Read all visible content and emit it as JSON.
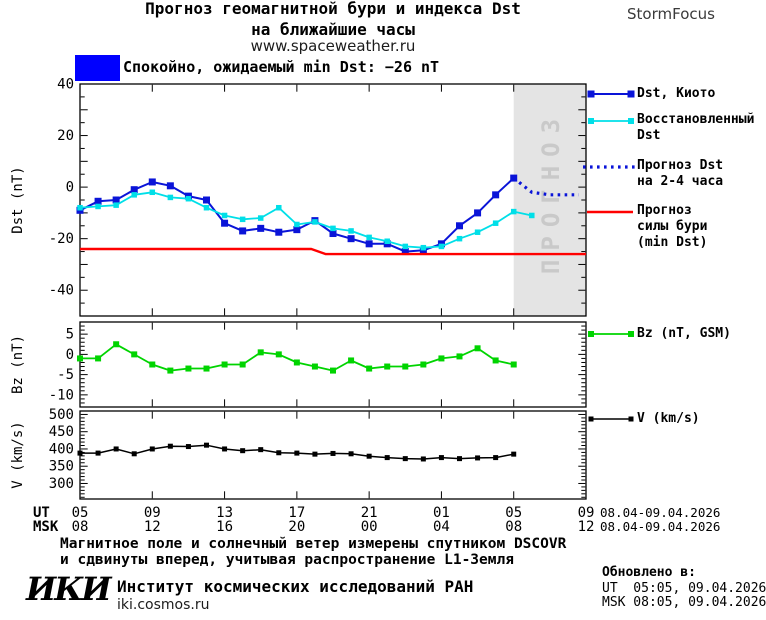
{
  "header": {
    "title_line1": "Прогноз геомагнитной бури и индекса Dst",
    "title_line2": "на ближайшие часы",
    "url": "www.spaceweather.ru",
    "brand": "StormFocus"
  },
  "status_banner": {
    "state_text": "Спокойно, ожидаемый min Dst: −26 nT",
    "swatch_color": "#0000ff"
  },
  "legend": {
    "dst_kyoto": "Dst, Киото",
    "restored_l1": "Восстановленный",
    "restored_l2": "Dst",
    "forecast_l1": "Прогноз Dst",
    "forecast_l2": "на 2-4 часа",
    "storm_l1": "Прогноз",
    "storm_l2": "силы бури",
    "storm_l3": "(min Dst)",
    "bz": "Bz (nT, GSM)",
    "v": "V (km/s)"
  },
  "footer": {
    "note_line1": "Магнитное поле и солнечный ветер измерены спутником DSCOVR",
    "note_line2": "и сдвинуты вперед, учитывая распространение L1-Земля",
    "logo": "ИКИ",
    "institute": "Институт космических исследований РАН",
    "institute_url": "iki.cosmos.ru",
    "updated_label": "Обновлено в:",
    "updated_ut": "UT  05:05, 09.04.2026",
    "updated_msk": "MSK 08:05, 09.04.2026"
  },
  "chart_data": {
    "x_axis": {
      "ut_row_label": "UT",
      "msk_row_label": "MSK",
      "tick_hours": [
        0,
        4,
        8,
        12,
        16,
        20,
        24,
        28
      ],
      "ut_ticks": [
        "05",
        "09",
        "13",
        "17",
        "21",
        "01",
        "05",
        "09"
      ],
      "msk_ticks": [
        "08",
        "12",
        "16",
        "20",
        "00",
        "04",
        "08",
        "12"
      ],
      "ut_date_range": "08.04-09.04.2026",
      "msk_date_range": "08.04-09.04.2026",
      "hours_total": 28
    },
    "panels": [
      {
        "type": "line",
        "ylabel": "Dst (nT)",
        "ylim": [
          -50,
          40
        ],
        "ytick_labels": [
          [
            "40",
            40
          ],
          [
            "20",
            20
          ],
          [
            "0",
            0
          ],
          [
            "-20",
            -20
          ],
          [
            "-40",
            -40
          ]
        ],
        "ytick_minor_step": 5,
        "ytick_major_step": 10,
        "forecast_region": {
          "label": "ПРОГНОЗ",
          "from_hour": 24,
          "to_hour": 28,
          "fill": "#e4e4e4",
          "label_color": "#c9c9c9"
        },
        "series": [
          {
            "name": "Dst, Киото",
            "color": "#0a14d8",
            "x": [
              0,
              1,
              2,
              3,
              4,
              5,
              6,
              7,
              8,
              9,
              10,
              11,
              12,
              13,
              14,
              15,
              16,
              17,
              18,
              19,
              20,
              21,
              22,
              23,
              24
            ],
            "values": [
              -9,
              -5.5,
              -5,
              -1,
              2,
              0.5,
              -3.5,
              -5,
              -14,
              -17,
              -16,
              -17.5,
              -16.5,
              -13,
              -18,
              -20,
              -22,
              -22,
              -25,
              -24.5,
              -22,
              -15,
              -10,
              -3,
              3.5
            ]
          },
          {
            "name": "Восстановленный Dst",
            "color": "#00dfe8",
            "x": [
              0,
              1,
              2,
              3,
              4,
              5,
              6,
              7,
              8,
              9,
              10,
              11,
              12,
              13,
              14,
              15,
              16,
              17,
              18,
              19,
              20,
              21,
              22,
              23,
              24,
              25
            ],
            "values": [
              -8,
              -7.5,
              -7,
              -3,
              -2,
              -4,
              -4.5,
              -8,
              -11,
              -12.5,
              -12,
              -8,
              -14.5,
              -13.5,
              -16,
              -17,
              -19.5,
              -21,
              -23,
              -23.5,
              -23,
              -20,
              -17.5,
              -14,
              -9.5,
              -11
            ]
          },
          {
            "name": "Прогноз Dst на 2-4 часа",
            "color": "#0a14d8",
            "style": "dotted",
            "x": [
              24,
              25,
              26,
              27.6
            ],
            "values": [
              3.5,
              -2,
              -3,
              -3
            ]
          },
          {
            "name": "Прогноз силы бури (min Dst)",
            "color": "#ff0000",
            "style": "plain",
            "x": [
              0,
              12.8,
              13.6,
              28
            ],
            "values": [
              -24,
              -24,
              -26,
              -26
            ]
          }
        ]
      },
      {
        "type": "line",
        "ylabel": "Bz (nT)",
        "ylim": [
          -13,
          8
        ],
        "ytick_labels": [
          [
            "5",
            5
          ],
          [
            "0",
            0
          ],
          [
            "-5",
            -5
          ],
          [
            "-10",
            -10
          ]
        ],
        "ytick_minor_step": 1,
        "ytick_major_step": 5,
        "series": [
          {
            "name": "Bz (nT, GSM)",
            "color": "#00d400",
            "x": [
              0,
              1,
              2,
              3,
              4,
              5,
              6,
              7,
              8,
              9,
              10,
              11,
              12,
              13,
              14,
              15,
              16,
              17,
              18,
              19,
              20,
              21,
              22,
              23,
              24
            ],
            "values": [
              -1,
              -1,
              2.5,
              0,
              -2.5,
              -4,
              -3.5,
              -3.5,
              -2.5,
              -2.5,
              0.5,
              0,
              -2,
              -3,
              -4,
              -1.5,
              -3.5,
              -3,
              -3,
              -2.5,
              -1,
              -0.5,
              1.5,
              -1.5,
              -2.5
            ]
          }
        ]
      },
      {
        "type": "line",
        "ylabel": "V (km/s)",
        "ylim": [
          255,
          510
        ],
        "ytick_labels": [
          [
            "500",
            500
          ],
          [
            "450",
            450
          ],
          [
            "400",
            400
          ],
          [
            "350",
            350
          ],
          [
            "300",
            300
          ]
        ],
        "ytick_minor_step": 10,
        "ytick_major_step": 50,
        "series": [
          {
            "name": "V (km/s)",
            "color": "#000000",
            "x": [
              0,
              1,
              2,
              3,
              4,
              5,
              6,
              7,
              8,
              9,
              10,
              11,
              12,
              13,
              14,
              15,
              16,
              17,
              18,
              19,
              20,
              21,
              22,
              23,
              24
            ],
            "values": [
              388,
              388,
              400,
              386,
              400,
              408,
              407,
              411,
              400,
              395,
              398,
              389,
              388,
              385,
              387,
              386,
              379,
              375,
              372,
              371,
              375,
              372,
              374,
              375,
              385
            ]
          }
        ]
      }
    ]
  }
}
